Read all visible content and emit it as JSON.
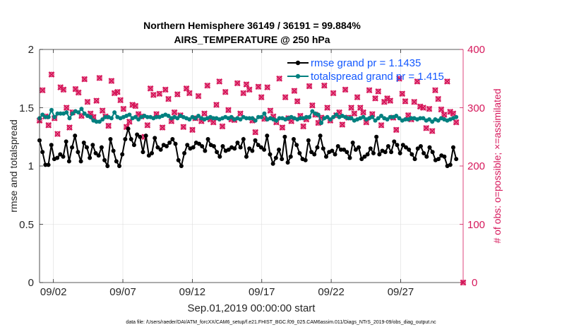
{
  "chart_data": {
    "type": "line",
    "title_line1": "Northern Hemisphere 36149 / 36191 = 99.884%",
    "title_line2": "AIRS_TEMPERATURE @ 250 hPa",
    "ylabel_left": "rmse and totalspread",
    "ylabel_right": "# of obs: o=possible; ×=assimilated",
    "xlabel": "Sep.01,2019 00:00:00 start",
    "footnote": "data file: /Users/raeder/DAI/ATM_forcXX/CAM6_setup/f.e21.FHIST_BGC.f09_025.CAM6assim.011/Diags_NTrS_2019-09/obs_diag_output.nc",
    "ylim_left": [
      0,
      2
    ],
    "ylim_right": [
      0,
      400
    ],
    "xlim_days": [
      0,
      30.5
    ],
    "left_ticks": [
      "0",
      "0.5",
      "1",
      "1.5",
      "2"
    ],
    "right_ticks": [
      "0",
      "100",
      "200",
      "300",
      "400"
    ],
    "x_ticks": [
      {
        "label": "09/02",
        "day": 1
      },
      {
        "label": "09/07",
        "day": 6
      },
      {
        "label": "09/12",
        "day": 11
      },
      {
        "label": "09/17",
        "day": 16
      },
      {
        "label": "09/22",
        "day": 21
      },
      {
        "label": "09/27",
        "day": 26
      }
    ],
    "grid": true,
    "legend_position": "top-right",
    "series": [
      {
        "name": "rmse grand pr = 1.1435",
        "color": "#000000",
        "axis": "left",
        "values": [
          1.22,
          1.12,
          1.01,
          1.01,
          1.18,
          1.06,
          1.07,
          1.1,
          1.08,
          1.21,
          1.04,
          1.16,
          1.26,
          1.12,
          1.04,
          1.2,
          1.16,
          1.07,
          1.18,
          1.11,
          1.09,
          1.16,
          1.05,
          1.0,
          1.23,
          1.13,
          1.04,
          1.0,
          1.1,
          1.23,
          1.32,
          1.23,
          1.18,
          1.27,
          1.25,
          1.12,
          1.26,
          1.09,
          1.11,
          1.24,
          1.16,
          1.14,
          1.18,
          1.17,
          1.2,
          1.23,
          1.19,
          1.05,
          1.0,
          1.11,
          1.18,
          1.15,
          1.16,
          1.2,
          1.19,
          1.17,
          1.13,
          1.23,
          1.18,
          1.17,
          1.12,
          1.08,
          1.17,
          1.13,
          1.14,
          1.16,
          1.15,
          1.2,
          1.16,
          1.23,
          1.08,
          1.15,
          1.13,
          1.22,
          1.18,
          1.16,
          1.14,
          1.26,
          1.1,
          1.02,
          1.07,
          1.14,
          1.06,
          1.25,
          1.03,
          1.08,
          1.23,
          1.18,
          1.11,
          1.06,
          1.05,
          1.22,
          1.12,
          1.1,
          1.16,
          1.26,
          1.15,
          1.08,
          1.12,
          1.13,
          1.1,
          1.17,
          1.14,
          1.14,
          1.12,
          1.07,
          1.2,
          1.14,
          1.16,
          1.06,
          1.08,
          1.1,
          1.15,
          1.11,
          1.25,
          1.1,
          1.13,
          1.12,
          1.17,
          1.12,
          1.21,
          1.18,
          1.11,
          1.18,
          1.16,
          1.14,
          1.1,
          1.06,
          1.15,
          1.17,
          1.11,
          1.08,
          1.16,
          1.12,
          1.05,
          1.06,
          1.09,
          1.08,
          1.0,
          1.01,
          1.16,
          1.06
        ]
      },
      {
        "name": "totalspread grand pr = 1.415",
        "color": "#00807f",
        "axis": "left",
        "values": [
          1.41,
          1.44,
          1.42,
          1.42,
          1.48,
          1.42,
          1.45,
          1.45,
          1.45,
          1.46,
          1.41,
          1.45,
          1.47,
          1.46,
          1.49,
          1.45,
          1.43,
          1.42,
          1.39,
          1.38,
          1.38,
          1.4,
          1.42,
          1.42,
          1.41,
          1.46,
          1.42,
          1.41,
          1.42,
          1.43,
          1.44,
          1.41,
          1.42,
          1.4,
          1.42,
          1.43,
          1.42,
          1.42,
          1.41,
          1.42,
          1.42,
          1.43,
          1.44,
          1.43,
          1.41,
          1.42,
          1.41,
          1.43,
          1.42,
          1.41,
          1.4,
          1.42,
          1.41,
          1.43,
          1.41,
          1.4,
          1.41,
          1.42,
          1.41,
          1.41,
          1.4,
          1.41,
          1.42,
          1.41,
          1.42,
          1.4,
          1.41,
          1.4,
          1.42,
          1.41,
          1.41,
          1.41,
          1.39,
          1.42,
          1.42,
          1.45,
          1.4,
          1.41,
          1.4,
          1.39,
          1.41,
          1.41,
          1.4,
          1.41,
          1.42,
          1.41,
          1.4,
          1.41,
          1.41,
          1.42,
          1.42,
          1.47,
          1.45,
          1.44,
          1.37,
          1.41,
          1.42,
          1.4,
          1.42,
          1.44,
          1.42,
          1.43,
          1.42,
          1.41,
          1.41,
          1.39,
          1.4,
          1.41,
          1.42,
          1.4,
          1.41,
          1.42,
          1.39,
          1.41,
          1.43,
          1.41,
          1.4,
          1.42,
          1.42,
          1.43,
          1.41,
          1.39,
          1.4,
          1.4,
          1.41,
          1.41,
          1.4,
          1.41,
          1.41,
          1.39,
          1.4,
          1.38,
          1.4,
          1.39,
          1.41,
          1.4,
          1.39,
          1.4,
          1.41,
          1.42
        ]
      }
    ],
    "obs_possible": {
      "color": "#d6185b",
      "axis": "right",
      "marker": "o",
      "values": [
        278,
        330,
        285,
        270,
        357,
        282,
        255,
        335,
        331,
        300,
        266,
        292,
        332,
        326,
        286,
        349,
        310,
        290,
        284,
        312,
        351,
        295,
        285,
        269,
        346,
        325,
        327,
        313,
        298,
        267,
        276,
        305,
        303,
        289,
        285,
        250,
        270,
        333,
        322,
        289,
        324,
        266,
        331,
        315,
        277,
        292,
        323,
        287,
        267,
        333,
        325,
        262,
        282,
        320,
        277,
        290,
        338,
        280,
        275,
        305,
        345,
        268,
        327,
        296,
        280,
        279,
        342,
        290,
        325,
        340,
        331,
        278,
        258,
        336,
        318,
        281,
        335,
        295,
        285,
        275,
        350,
        266,
        318,
        282,
        277,
        329,
        311,
        286,
        268,
        280,
        337,
        304,
        288,
        274,
        283,
        338,
        300,
        278,
        325,
        287,
        292,
        271,
        331,
        283,
        300,
        290,
        318,
        300,
        292,
        275,
        330,
        289,
        316,
        328,
        270,
        310,
        316,
        312,
        283,
        262,
        350,
        324,
        311,
        287,
        280,
        310,
        345,
        302,
        300,
        265,
        298,
        260,
        330,
        315,
        297,
        288,
        345,
        293,
        290,
        275
      ]
    },
    "obs_assimilated": {
      "color": "#d6185b",
      "axis": "right",
      "marker": "x",
      "values": [
        278,
        330,
        285,
        270,
        357,
        282,
        255,
        335,
        331,
        300,
        266,
        292,
        332,
        326,
        286,
        349,
        310,
        290,
        284,
        312,
        351,
        295,
        285,
        269,
        346,
        325,
        327,
        313,
        298,
        267,
        276,
        305,
        303,
        289,
        285,
        250,
        270,
        333,
        322,
        289,
        324,
        266,
        331,
        315,
        277,
        292,
        323,
        287,
        267,
        333,
        325,
        262,
        282,
        320,
        277,
        290,
        338,
        280,
        275,
        305,
        345,
        268,
        327,
        296,
        280,
        279,
        342,
        290,
        325,
        340,
        331,
        278,
        258,
        336,
        318,
        281,
        335,
        295,
        285,
        275,
        350,
        266,
        318,
        282,
        277,
        329,
        311,
        286,
        268,
        280,
        337,
        304,
        288,
        274,
        283,
        338,
        300,
        278,
        325,
        287,
        292,
        271,
        331,
        283,
        300,
        290,
        318,
        300,
        292,
        275,
        330,
        289,
        316,
        328,
        270,
        310,
        316,
        312,
        283,
        262,
        350,
        324,
        311,
        287,
        280,
        310,
        345,
        302,
        300,
        265,
        298,
        260,
        330,
        315,
        297,
        288,
        345,
        293,
        290,
        275
      ]
    },
    "extra_point": {
      "day": 30.5,
      "right_value": 0
    }
  }
}
